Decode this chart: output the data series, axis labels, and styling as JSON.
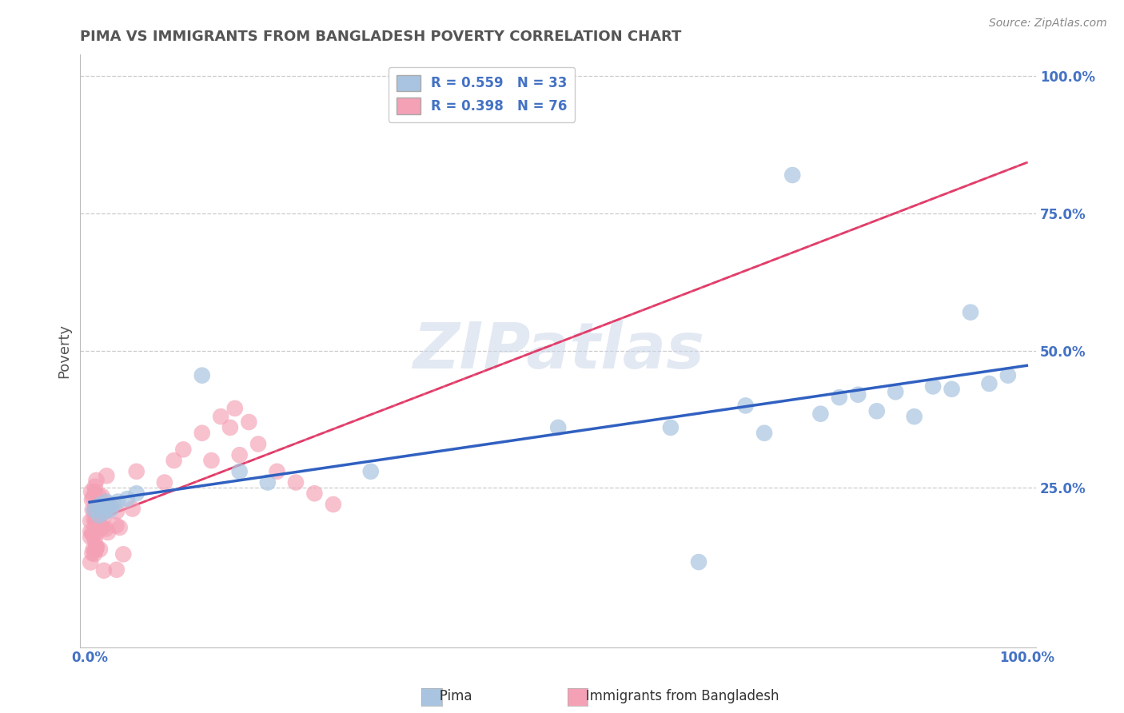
{
  "title": "PIMA VS IMMIGRANTS FROM BANGLADESH POVERTY CORRELATION CHART",
  "source": "Source: ZipAtlas.com",
  "ylabel": "Poverty",
  "watermark": "ZIPatlas",
  "legend1_label": "Pima",
  "legend2_label": "Immigrants from Bangladesh",
  "R1": 0.559,
  "N1": 33,
  "R2": 0.398,
  "N2": 76,
  "color_blue": "#a8c4e0",
  "color_pink": "#f4a0b5",
  "line_blue": "#3060c0",
  "line_pink": "#e03060",
  "line_pink_dash": "#e87090",
  "background": "#ffffff",
  "ytick_color": "#4472c4",
  "xtick_color": "#4472c4",
  "grid_color": "#cccccc",
  "title_color": "#555555",
  "source_color": "#888888"
}
